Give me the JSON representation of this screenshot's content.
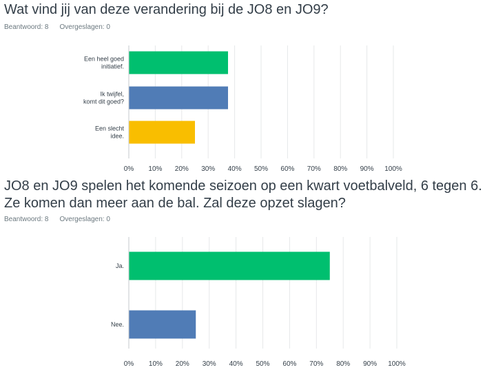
{
  "questions": [
    {
      "title": "Wat vind jij van deze verandering bij de JO8 en JO9?",
      "answered_label": "Beantwoord: 8",
      "skipped_label": "Overgeslagen: 0"
    },
    {
      "title_lines": [
        "JO8 en JO9 spelen het komende seizoen op een kwart voetbalveld, 6 tegen 6.",
        "Ze komen dan meer aan de bal. Zal deze opzet slagen?"
      ],
      "answered_label": "Beantwoord: 8",
      "skipped_label": "Overgeslagen: 0"
    }
  ],
  "chart_data": [
    {
      "type": "bar",
      "orientation": "horizontal",
      "categories": [
        [
          "Een heel goed",
          "initiatief."
        ],
        [
          "Ik twijfel,",
          "komt dit goed?"
        ],
        [
          "Een slecht",
          "idee."
        ]
      ],
      "values": [
        37.5,
        37.5,
        25
      ],
      "colors": [
        "#00bf6f",
        "#507cb6",
        "#f9be00"
      ],
      "xlim": [
        0,
        100
      ],
      "ticks": [
        "0%",
        "10%",
        "20%",
        "30%",
        "40%",
        "50%",
        "60%",
        "70%",
        "80%",
        "90%",
        "100%"
      ],
      "grid": true
    },
    {
      "type": "bar",
      "orientation": "horizontal",
      "categories": [
        [
          "Ja."
        ],
        [
          "Nee."
        ]
      ],
      "values": [
        75,
        25
      ],
      "colors": [
        "#00bf6f",
        "#507cb6"
      ],
      "xlim": [
        0,
        100
      ],
      "ticks": [
        "0%",
        "10%",
        "20%",
        "30%",
        "40%",
        "50%",
        "60%",
        "70%",
        "80%",
        "90%",
        "100%"
      ],
      "grid": true
    }
  ]
}
